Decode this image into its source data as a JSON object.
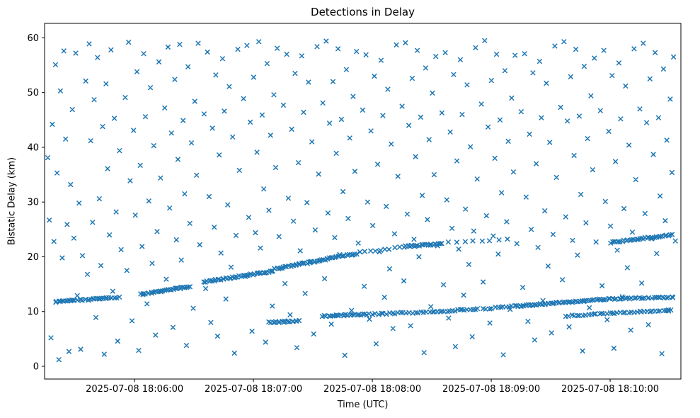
{
  "chart_data": {
    "type": "scatter",
    "title": "Detections in Delay",
    "xlabel": "Time (UTC)",
    "ylabel": "Bistatic Delay (km)",
    "marker": "x",
    "marker_color": "#1f77b4",
    "x_encoding": "seconds after 2025-07-08 18:05:00 UTC",
    "xlim": [
      14.6,
      335.7
    ],
    "ylim": [
      -2.33,
      62.64
    ],
    "x_ticks": [
      {
        "t": 60,
        "label": "2025-07-08 18:06:00"
      },
      {
        "t": 120,
        "label": "2025-07-08 18:07:00"
      },
      {
        "t": 180,
        "label": "2025-07-08 18:08:00"
      },
      {
        "t": 240,
        "label": "2025-07-08 18:09:00"
      },
      {
        "t": 300,
        "label": "2025-07-08 18:10:00"
      }
    ],
    "y_ticks": [
      0,
      10,
      20,
      30,
      40,
      50,
      60
    ],
    "tracks": [
      {
        "t": [
          20,
          52
        ],
        "y": [
          11.8,
          12.6
        ],
        "n": 40
      },
      {
        "t": [
          63,
          88
        ],
        "y": [
          13.1,
          14.6
        ],
        "n": 30
      },
      {
        "t": [
          95,
          130
        ],
        "y": [
          15.4,
          17.4
        ],
        "n": 42
      },
      {
        "t": [
          131,
          172
        ],
        "y": [
          17.8,
          20.6
        ],
        "n": 50
      },
      {
        "t": [
          174,
          196
        ],
        "y": [
          20.8,
          21.8
        ],
        "n": 10
      },
      {
        "t": [
          197,
          215
        ],
        "y": [
          21.9,
          22.4
        ],
        "n": 22
      },
      {
        "t": [
          218,
          248
        ],
        "y": [
          22.6,
          23.2
        ],
        "n": 8
      },
      {
        "t": [
          300,
          331
        ],
        "y": [
          22.6,
          24.0
        ],
        "n": 36
      },
      {
        "t": [
          128,
          143
        ],
        "y": [
          8.0,
          8.3
        ],
        "n": 18
      },
      {
        "t": [
          155,
          178
        ],
        "y": [
          9.2,
          9.5
        ],
        "n": 26
      },
      {
        "t": [
          180,
          213
        ],
        "y": [
          9.5,
          10.0
        ],
        "n": 24
      },
      {
        "t": [
          214,
          233
        ],
        "y": [
          10.0,
          10.5
        ],
        "n": 16
      },
      {
        "t": [
          236,
          252
        ],
        "y": [
          10.5,
          11.0
        ],
        "n": 12
      },
      {
        "t": [
          253,
          263
        ],
        "y": [
          11.0,
          11.3
        ],
        "n": 14
      },
      {
        "t": [
          264,
          299
        ],
        "y": [
          11.3,
          12.3
        ],
        "n": 40
      },
      {
        "t": [
          300,
          332
        ],
        "y": [
          12.3,
          12.6
        ],
        "n": 30
      },
      {
        "t": [
          278,
          331
        ],
        "y": [
          9.2,
          10.3
        ],
        "n": 40
      }
    ],
    "noise": [
      16.2,
      38.1,
      17.0,
      26.7,
      17.8,
      5.2,
      18.5,
      44.2,
      19.3,
      22.8,
      20.1,
      55.1,
      20.9,
      35.3,
      21.8,
      1.2,
      22.6,
      50.3,
      23.5,
      19.8,
      24.3,
      57.6,
      25.2,
      41.5,
      26.0,
      25.9,
      26.9,
      2.7,
      27.7,
      33.2,
      28.6,
      46.9,
      29.4,
      23.4,
      30.3,
      57.2,
      31.1,
      12.9,
      32.0,
      29.8,
      32.8,
      3.1,
      33.7,
      20.2,
      35.4,
      52.1,
      36.2,
      16.8,
      37.1,
      58.9,
      37.9,
      41.2,
      38.8,
      26.3,
      39.6,
      48.7,
      40.5,
      8.9,
      41.3,
      56.4,
      42.2,
      30.6,
      43.0,
      18.4,
      43.9,
      43.8,
      44.7,
      2.2,
      45.6,
      51.6,
      46.4,
      36.1,
      47.3,
      24.0,
      48.1,
      57.8,
      49.0,
      13.7,
      49.8,
      45.3,
      50.7,
      28.2,
      51.5,
      4.6,
      52.4,
      39.4,
      53.2,
      21.3,
      55.3,
      49.1,
      56.1,
      17.5,
      57.0,
      59.2,
      57.8,
      33.9,
      58.7,
      8.3,
      59.5,
      43.1,
      60.4,
      27.6,
      61.2,
      53.8,
      62.1,
      2.9,
      62.9,
      36.7,
      63.8,
      21.9,
      64.6,
      57.1,
      65.5,
      45.6,
      66.3,
      11.4,
      67.2,
      30.2,
      68.0,
      50.9,
      68.9,
      18.8,
      69.7,
      40.3,
      70.6,
      5.7,
      71.4,
      24.6,
      72.3,
      55.6,
      73.1,
      34.4,
      75.2,
      47.2,
      76.0,
      15.9,
      76.9,
      58.3,
      77.7,
      28.9,
      78.6,
      42.6,
      79.4,
      7.1,
      80.3,
      52.4,
      81.1,
      23.1,
      81.9,
      37.8,
      82.8,
      58.8,
      83.6,
      19.4,
      84.5,
      44.9,
      85.3,
      31.5,
      86.2,
      3.8,
      87.0,
      54.7,
      87.9,
      26.1,
      88.7,
      40.8,
      89.6,
      10.6,
      90.4,
      48.4,
      91.3,
      34.9,
      92.1,
      59.0,
      92.9,
      22.2,
      95.1,
      46.1,
      95.9,
      14.2,
      96.8,
      57.4,
      97.6,
      31.0,
      98.5,
      8.0,
      99.3,
      43.5,
      100.2,
      25.4,
      101.0,
      53.2,
      101.9,
      5.5,
      102.7,
      38.6,
      103.6,
      20.7,
      104.4,
      56.2,
      105.3,
      46.6,
      106.1,
      12.3,
      107.0,
      29.5,
      107.8,
      51.1,
      108.7,
      18.1,
      109.5,
      41.9,
      110.4,
      2.4,
      111.2,
      23.9,
      112.1,
      57.9,
      112.9,
      35.8,
      115.0,
      48.9,
      115.9,
      16.4,
      116.7,
      58.6,
      117.6,
      27.2,
      118.4,
      44.6,
      119.3,
      6.4,
      120.1,
      52.8,
      121.0,
      24.4,
      121.8,
      39.1,
      122.7,
      59.3,
      123.5,
      21.6,
      124.4,
      45.9,
      125.2,
      32.4,
      126.1,
      4.4,
      126.9,
      55.3,
      127.8,
      28.5,
      128.6,
      42.2,
      129.5,
      11.0,
      130.3,
      49.6,
      131.2,
      36.3,
      132.0,
      58.1,
      132.9,
      23.7,
      135.1,
      47.7,
      135.9,
      15.1,
      136.8,
      57.0,
      137.6,
      30.7,
      138.5,
      9.4,
      139.3,
      43.3,
      140.2,
      26.5,
      141.0,
      53.5,
      141.9,
      3.4,
      142.7,
      37.2,
      143.6,
      21.1,
      144.4,
      56.7,
      145.3,
      46.4,
      146.1,
      13.3,
      147.0,
      29.9,
      147.8,
      51.9,
      148.7,
      19.1,
      149.5,
      41.0,
      150.4,
      5.9,
      151.2,
      24.9,
      152.1,
      58.4,
      152.9,
      35.1,
      155.0,
      48.1,
      155.9,
      16.0,
      156.7,
      59.4,
      157.6,
      28.0,
      158.4,
      44.4,
      159.3,
      7.7,
      160.1,
      52.0,
      161.0,
      23.5,
      161.8,
      38.9,
      162.7,
      58.0,
      163.5,
      20.4,
      164.4,
      45.1,
      165.2,
      31.9,
      166.1,
      2.0,
      166.9,
      54.2,
      167.8,
      27.0,
      168.6,
      41.7,
      169.5,
      10.2,
      170.3,
      49.3,
      171.2,
      35.6,
      172.0,
      57.5,
      172.9,
      22.5,
      175.1,
      46.8,
      175.9,
      14.6,
      176.8,
      56.9,
      177.6,
      30.0,
      178.5,
      8.6,
      179.3,
      43.0,
      180.2,
      25.7,
      181.0,
      53.0,
      181.9,
      4.1,
      182.7,
      36.9,
      183.6,
      20.9,
      184.4,
      55.9,
      185.3,
      45.8,
      186.1,
      12.6,
      187.0,
      29.2,
      187.8,
      50.6,
      188.7,
      17.8,
      189.5,
      40.6,
      190.4,
      6.9,
      191.2,
      24.2,
      192.1,
      58.7,
      192.9,
      34.7,
      195.0,
      47.5,
      195.9,
      15.6,
      196.7,
      59.1,
      197.6,
      27.8,
      198.4,
      44.0,
      199.3,
      7.4,
      200.1,
      52.6,
      201.0,
      23.2,
      201.8,
      38.3,
      202.7,
      57.7,
      203.5,
      20.0,
      204.4,
      45.5,
      205.2,
      31.2,
      206.1,
      2.5,
      206.9,
      54.5,
      207.8,
      26.8,
      208.6,
      41.4,
      209.5,
      10.9,
      210.3,
      49.9,
      211.2,
      35.0,
      212.0,
      56.6,
      212.9,
      22.0,
      215.1,
      46.3,
      215.9,
      14.9,
      216.8,
      57.3,
      217.6,
      30.4,
      218.5,
      8.8,
      219.3,
      42.8,
      220.2,
      25.2,
      221.0,
      53.3,
      221.9,
      3.6,
      222.7,
      37.5,
      223.6,
      21.4,
      224.4,
      56.0,
      225.3,
      46.0,
      226.1,
      13.0,
      227.0,
      28.7,
      227.8,
      51.4,
      228.7,
      18.6,
      229.5,
      40.1,
      230.4,
      5.4,
      231.2,
      24.7,
      232.1,
      58.2,
      232.9,
      34.2,
      235.0,
      47.9,
      235.9,
      15.4,
      236.7,
      59.5,
      237.6,
      27.5,
      238.4,
      43.7,
      239.3,
      7.9,
      240.1,
      52.2,
      241.0,
      23.8,
      241.8,
      38.0,
      242.7,
      57.0,
      243.5,
      20.5,
      244.4,
      45.0,
      245.2,
      31.7,
      246.1,
      2.1,
      246.9,
      54.0,
      247.8,
      26.4,
      248.6,
      41.1,
      249.5,
      10.4,
      250.3,
      49.0,
      251.2,
      35.5,
      252.0,
      56.8,
      252.9,
      22.4,
      255.1,
      46.5,
      255.9,
      14.4,
      256.8,
      57.1,
      257.6,
      30.9,
      258.5,
      8.2,
      259.3,
      42.4,
      260.2,
      25.0,
      261.0,
      53.6,
      261.9,
      4.8,
      262.7,
      37.0,
      263.6,
      21.7,
      264.4,
      55.7,
      265.3,
      45.4,
      266.1,
      12.0,
      267.0,
      28.4,
      267.8,
      51.7,
      268.7,
      18.3,
      269.5,
      40.9,
      270.4,
      6.1,
      271.2,
      24.1,
      272.1,
      58.5,
      272.9,
      34.5,
      275.0,
      47.3,
      275.9,
      15.8,
      276.7,
      59.3,
      277.6,
      27.3,
      278.4,
      44.8,
      279.3,
      7.2,
      280.1,
      52.9,
      281.0,
      23.0,
      281.8,
      38.5,
      282.7,
      57.9,
      283.5,
      20.3,
      284.4,
      45.7,
      285.2,
      31.4,
      286.1,
      2.8,
      286.9,
      54.8,
      287.8,
      26.2,
      288.6,
      41.6,
      289.5,
      10.7,
      290.3,
      49.4,
      291.2,
      35.9,
      292.0,
      56.3,
      292.9,
      22.7,
      295.1,
      46.7,
      295.9,
      14.7,
      296.8,
      57.7,
      297.6,
      30.1,
      298.5,
      8.5,
      299.3,
      42.9,
      300.2,
      25.6,
      301.0,
      53.1,
      301.9,
      3.3,
      302.7,
      37.4,
      303.6,
      21.2,
      304.4,
      55.4,
      305.3,
      45.2,
      306.1,
      12.7,
      307.0,
      28.8,
      307.8,
      51.2,
      308.7,
      18.0,
      309.5,
      40.4,
      310.4,
      6.6,
      311.2,
      24.5,
      312.1,
      58.0,
      312.9,
      34.1,
      315.0,
      47.0,
      315.9,
      15.2,
      316.7,
      59.0,
      317.6,
      27.9,
      318.4,
      44.5,
      319.3,
      7.6,
      320.1,
      52.5,
      321.0,
      23.3,
      321.8,
      38.7,
      322.7,
      57.3,
      323.5,
      20.6,
      324.4,
      45.4,
      325.2,
      31.1,
      326.1,
      2.3,
      326.9,
      54.3,
      327.8,
      26.6,
      328.6,
      41.3,
      329.5,
      10.1,
      330.3,
      48.8,
      331.2,
      35.4,
      332.0,
      56.5,
      332.9,
      22.9
    ]
  }
}
